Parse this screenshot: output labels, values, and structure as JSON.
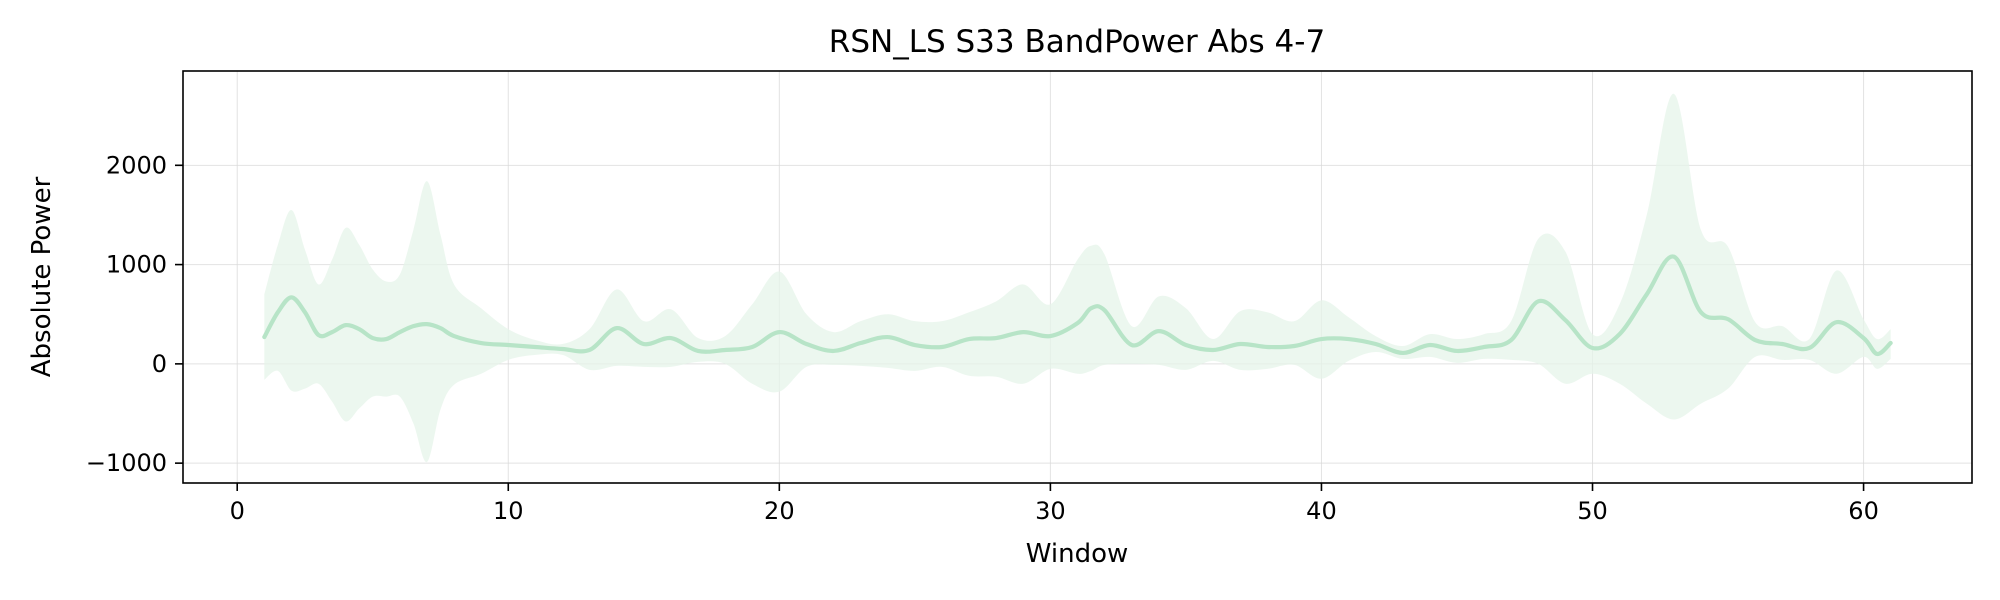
{
  "chart_data": {
    "type": "line",
    "title": "RSN_LS S33 BandPower Abs 4-7",
    "xlabel": "Window",
    "ylabel": "Absolute Power",
    "xlim": [
      -2,
      64
    ],
    "ylim": [
      -1200,
      2950
    ],
    "xticks": [
      0,
      10,
      20,
      30,
      40,
      50,
      60
    ],
    "yticks": [
      -1000,
      0,
      1000,
      2000
    ],
    "xtick_labels": [
      "0",
      "10",
      "20",
      "30",
      "40",
      "50",
      "60"
    ],
    "ytick_labels": [
      "−1000",
      "0",
      "1000",
      "2000"
    ],
    "grid": true,
    "legend": "none",
    "line_color": "#b7e4c7",
    "fill_color": "#e6f4ea",
    "series": [
      {
        "x": [
          1,
          1.5,
          2,
          2.5,
          3,
          3.5,
          4,
          4.5,
          5,
          5.5,
          6,
          6.5,
          7,
          7.5,
          8,
          9,
          10,
          11,
          12,
          13,
          14,
          15,
          16,
          17,
          18,
          19,
          20,
          21,
          22,
          23,
          24,
          25,
          26,
          27,
          28,
          29,
          30,
          31,
          31.5,
          32,
          33,
          34,
          35,
          36,
          37,
          38,
          39,
          40,
          41,
          42,
          43,
          44,
          45,
          46,
          47,
          48,
          49,
          50,
          51,
          52,
          53,
          54,
          55,
          56,
          57,
          58,
          59,
          60,
          60.5,
          61
        ],
        "mean": [
          270,
          520,
          670,
          520,
          290,
          320,
          390,
          350,
          260,
          250,
          320,
          380,
          400,
          360,
          280,
          210,
          190,
          170,
          150,
          140,
          360,
          200,
          260,
          130,
          140,
          170,
          320,
          200,
          130,
          210,
          270,
          190,
          170,
          250,
          260,
          320,
          280,
          410,
          560,
          540,
          190,
          330,
          190,
          140,
          200,
          170,
          180,
          250,
          250,
          200,
          110,
          190,
          130,
          170,
          240,
          630,
          440,
          160,
          300,
          700,
          1080,
          520,
          450,
          240,
          200,
          160,
          420,
          260,
          100,
          210
        ],
        "upper": [
          700,
          1200,
          1550,
          1150,
          800,
          1050,
          1370,
          1200,
          950,
          830,
          900,
          1350,
          1840,
          1300,
          800,
          560,
          350,
          240,
          200,
          350,
          750,
          430,
          550,
          260,
          280,
          600,
          930,
          500,
          320,
          430,
          500,
          430,
          430,
          520,
          630,
          800,
          600,
          1050,
          1190,
          1100,
          380,
          680,
          560,
          250,
          530,
          520,
          430,
          640,
          470,
          280,
          180,
          300,
          250,
          300,
          430,
          1260,
          1130,
          300,
          600,
          1500,
          2720,
          1350,
          1180,
          420,
          380,
          250,
          940,
          450,
          250,
          350
        ],
        "lower": [
          -160,
          -70,
          -270,
          -250,
          -200,
          -380,
          -580,
          -450,
          -330,
          -330,
          -330,
          -600,
          -990,
          -460,
          -210,
          -100,
          40,
          90,
          90,
          -60,
          -20,
          -30,
          -30,
          20,
          0,
          -200,
          -280,
          -30,
          -10,
          -20,
          -40,
          -70,
          -30,
          -120,
          -130,
          -200,
          -50,
          -100,
          -70,
          -10,
          0,
          -10,
          -60,
          30,
          -60,
          -50,
          -10,
          -150,
          30,
          120,
          50,
          70,
          10,
          50,
          40,
          0,
          -200,
          -100,
          -200,
          -400,
          -560,
          -400,
          -250,
          70,
          40,
          40,
          -100,
          70,
          -50,
          50
        ]
      }
    ]
  }
}
